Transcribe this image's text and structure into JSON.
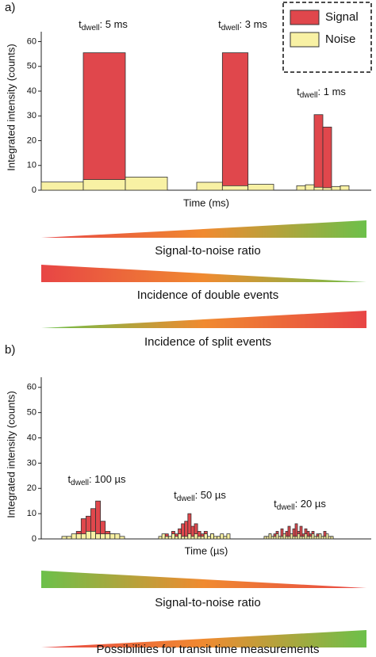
{
  "chart_data": [
    {
      "type": "bar",
      "panel_label": "a)",
      "ylabel": "Integrated intensity (counts)",
      "xlabel": "Time (ms)",
      "ylim": [
        0,
        64
      ],
      "yticks": [
        0,
        10,
        20,
        30,
        40,
        50,
        60
      ],
      "legend": true,
      "series": [
        {
          "name": "Signal",
          "color": "#e0474c"
        },
        {
          "name": "Noise",
          "color": "#f8f1a4"
        }
      ],
      "groups": [
        {
          "label": {
            "base": "t",
            "sub": "dwell",
            "rest": ": 5 ms"
          },
          "values": [
            [
              0,
              55.5,
              0
            ],
            [
              3.3,
              4.3,
              5.3
            ]
          ]
        },
        {
          "label": {
            "base": "t",
            "sub": "dwell",
            "rest": ": 3 ms"
          },
          "values": [
            [
              0,
              55.5,
              0
            ],
            [
              3.2,
              1.8,
              2.4
            ]
          ]
        },
        {
          "label": {
            "base": "t",
            "sub": "dwell",
            "rest": ": 1 ms"
          },
          "values": [
            [
              0,
              0,
              30.5,
              25.5,
              0,
              0
            ],
            [
              1.8,
              2.2,
              1.2,
              1,
              1.5,
              1.8
            ]
          ]
        }
      ],
      "scales": [
        {
          "label": "Signal-to-noise ratio",
          "shape": "rising",
          "colors": [
            "#e84545",
            "#f08a30",
            "#6cc04a"
          ]
        },
        {
          "label": "Incidence of double events",
          "shape": "falling",
          "colors": [
            "#e84545",
            "#f08a30",
            "#6cc04a"
          ]
        },
        {
          "label": "Incidence of split events",
          "shape": "rising",
          "colors": [
            "#6cc04a",
            "#f08a30",
            "#e84545"
          ]
        }
      ]
    },
    {
      "type": "bar",
      "panel_label": "b)",
      "ylabel": "Integrated intensity (counts)",
      "xlabel": "Time (µs)",
      "ylim": [
        0,
        64
      ],
      "yticks": [
        0,
        10,
        20,
        30,
        40,
        50,
        60
      ],
      "legend": false,
      "series": [
        {
          "color": "#e0474c"
        },
        {
          "color": "#f8f1a4"
        }
      ],
      "groups": [
        {
          "label": {
            "base": "t",
            "sub": "dwell",
            "rest": ": 100 µs"
          },
          "values": [
            [
              0,
              0,
              1,
              3,
              8,
              9,
              12,
              15,
              7,
              3,
              2,
              0,
              0
            ],
            [
              1,
              1,
              2,
              2,
              2,
              3,
              3,
              2,
              2,
              2,
              2,
              2,
              1
            ]
          ]
        },
        {
          "label": {
            "base": "t",
            "sub": "dwell",
            "rest": ": 50 µs"
          },
          "values": [
            [
              0,
              1,
              2,
              1,
              3,
              2,
              4,
              6,
              7,
              10,
              5,
              6,
              3,
              2,
              3,
              1,
              2,
              0,
              1,
              0,
              1,
              0
            ],
            [
              1,
              2,
              1,
              1,
              2,
              1,
              2,
              1,
              1,
              2,
              1,
              2,
              1,
              1,
              2,
              1,
              2,
              1,
              1,
              2,
              1,
              2
            ]
          ]
        },
        {
          "label": {
            "base": "t",
            "sub": "dwell",
            "rest": ": 20 µs"
          },
          "values": [
            [
              1,
              0,
              2,
              1,
              2,
              3,
              1,
              4,
              2,
              3,
              5,
              2,
              4,
              6,
              3,
              5,
              2,
              4,
              3,
              2,
              3,
              1,
              2,
              2,
              1,
              3,
              1,
              0,
              1
            ],
            [
              1,
              1,
              2,
              1,
              1,
              2,
              1,
              1,
              2,
              1,
              1,
              2,
              1,
              1,
              2,
              1,
              1,
              2,
              1,
              1,
              2,
              1,
              1,
              2,
              1,
              1,
              2,
              1,
              1
            ]
          ]
        }
      ],
      "scales": [
        {
          "label": "Signal-to-noise ratio",
          "shape": "falling",
          "colors": [
            "#6cc04a",
            "#f08a30",
            "#e84545"
          ]
        },
        {
          "label": "Possibilities for transit time measurements",
          "shape": "rising",
          "colors": [
            "#e84545",
            "#f08a30",
            "#6cc04a"
          ]
        }
      ]
    }
  ]
}
